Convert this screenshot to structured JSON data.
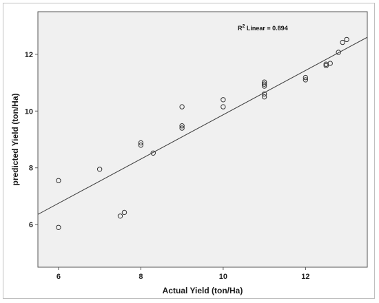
{
  "chart_data": {
    "type": "scatter",
    "xlabel": "Actual Yield (ton/Ha)",
    "ylabel": "predicted Yield (ton/Ha)",
    "xlim": [
      5.5,
      13.5
    ],
    "ylim": [
      4.5,
      13.5
    ],
    "xticks": [
      6,
      8,
      10,
      12
    ],
    "yticks": [
      6,
      8,
      10,
      12
    ],
    "xtick_labels": [
      "6",
      "8",
      "10",
      "12"
    ],
    "ytick_labels": [
      "6",
      "8",
      "10",
      "12"
    ],
    "annotation": {
      "prefix": "R",
      "sup": "2",
      "text": " Linear = 0.894"
    },
    "fit_line": {
      "slope": 0.78,
      "intercept": 2.07
    },
    "points": [
      {
        "x": 6.0,
        "y": 7.55
      },
      {
        "x": 6.0,
        "y": 5.9
      },
      {
        "x": 7.0,
        "y": 7.95
      },
      {
        "x": 7.5,
        "y": 6.3
      },
      {
        "x": 7.6,
        "y": 6.43
      },
      {
        "x": 8.0,
        "y": 8.88
      },
      {
        "x": 8.0,
        "y": 8.8
      },
      {
        "x": 8.3,
        "y": 8.52
      },
      {
        "x": 9.0,
        "y": 10.15
      },
      {
        "x": 9.0,
        "y": 9.48
      },
      {
        "x": 9.0,
        "y": 9.4
      },
      {
        "x": 10.0,
        "y": 10.4
      },
      {
        "x": 10.0,
        "y": 10.15
      },
      {
        "x": 11.0,
        "y": 11.02
      },
      {
        "x": 11.0,
        "y": 10.95
      },
      {
        "x": 11.0,
        "y": 10.88
      },
      {
        "x": 11.0,
        "y": 10.6
      },
      {
        "x": 11.0,
        "y": 10.5
      },
      {
        "x": 12.0,
        "y": 11.18
      },
      {
        "x": 12.0,
        "y": 11.1
      },
      {
        "x": 12.5,
        "y": 11.65
      },
      {
        "x": 12.5,
        "y": 11.6
      },
      {
        "x": 12.6,
        "y": 11.68
      },
      {
        "x": 12.8,
        "y": 12.07
      },
      {
        "x": 12.9,
        "y": 12.42
      },
      {
        "x": 13.0,
        "y": 12.52
      }
    ],
    "colors": {
      "plot_background": "#f0f0f0",
      "marker_stroke": "#333333",
      "fit_line": "#444444",
      "axis": "#555555"
    },
    "grid": false
  }
}
